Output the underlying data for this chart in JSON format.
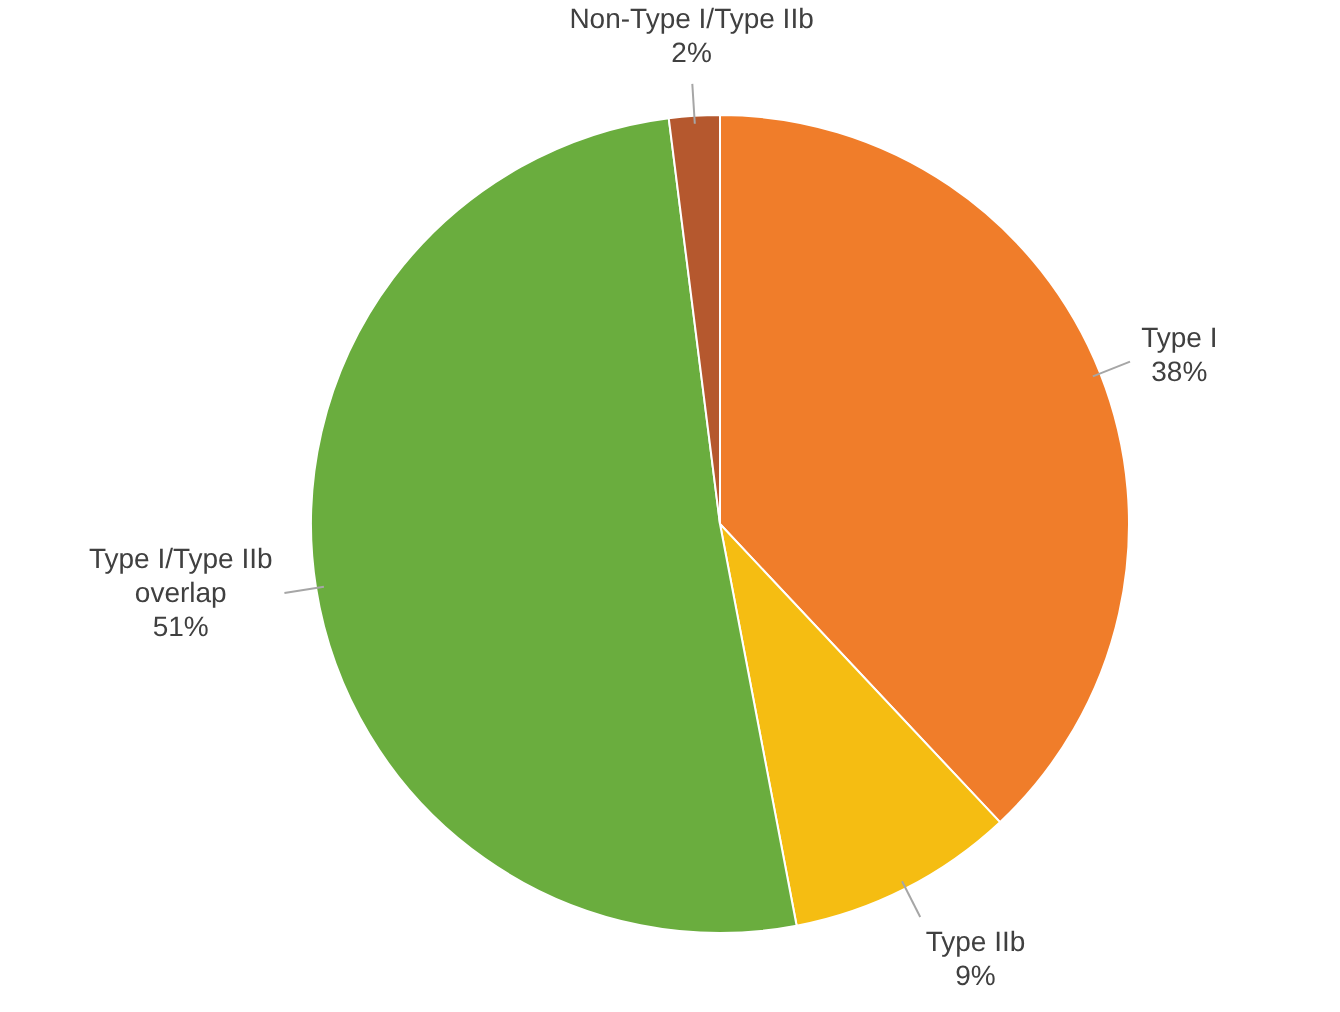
{
  "chart_data": {
    "type": "pie",
    "categories": [
      "Type I",
      "Type IIb",
      "Type I/Type IIb overlap",
      "Non-Type I/Type IIb"
    ],
    "values": [
      38,
      9,
      51,
      2
    ],
    "value_labels": [
      "38%",
      "9%",
      "51%",
      "2%"
    ],
    "colors": [
      "#f07d2a",
      "#f5bd12",
      "#6aad3e",
      "#b5582e"
    ],
    "legend": false
  }
}
